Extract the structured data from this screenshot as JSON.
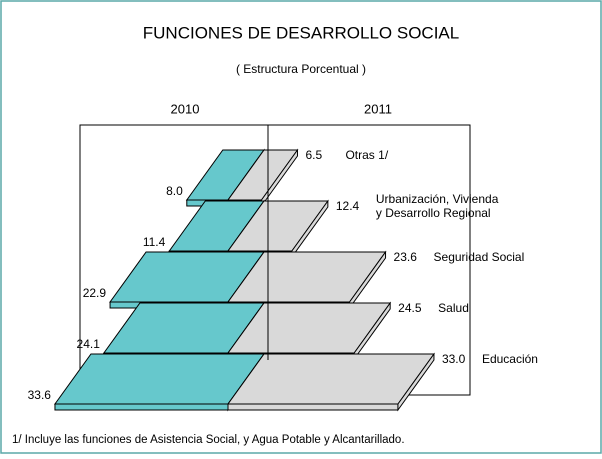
{
  "chart_data": {
    "type": "pyramid",
    "title": "FUNCIONES DE DESARROLLO SOCIAL",
    "subtitle": "( Estructura Porcentual )",
    "categories": [
      [
        "Otras 1/"
      ],
      [
        "Urbanización, Vivienda",
        "y  Desarrollo Regional"
      ],
      [
        "Seguridad Social"
      ],
      [
        "Salud"
      ],
      [
        "Educación"
      ]
    ],
    "series": [
      {
        "name": "2010",
        "color": "#66c8cc",
        "values": [
          8.0,
          11.4,
          22.9,
          24.1,
          33.6
        ],
        "value_labels": [
          "8.0",
          "11.4",
          "22.9",
          "24.1",
          "33.6"
        ]
      },
      {
        "name": "2011",
        "color": "#d9d9d9",
        "values": [
          6.5,
          12.4,
          23.6,
          24.5,
          33.0
        ],
        "value_labels": [
          "6.5",
          "12.4",
          "23.6",
          "24.5",
          "33.0"
        ]
      }
    ],
    "footnote": "1/ Incluye las funciones  de Asistencia Social, y Agua Potable  y Alcantarillado."
  }
}
